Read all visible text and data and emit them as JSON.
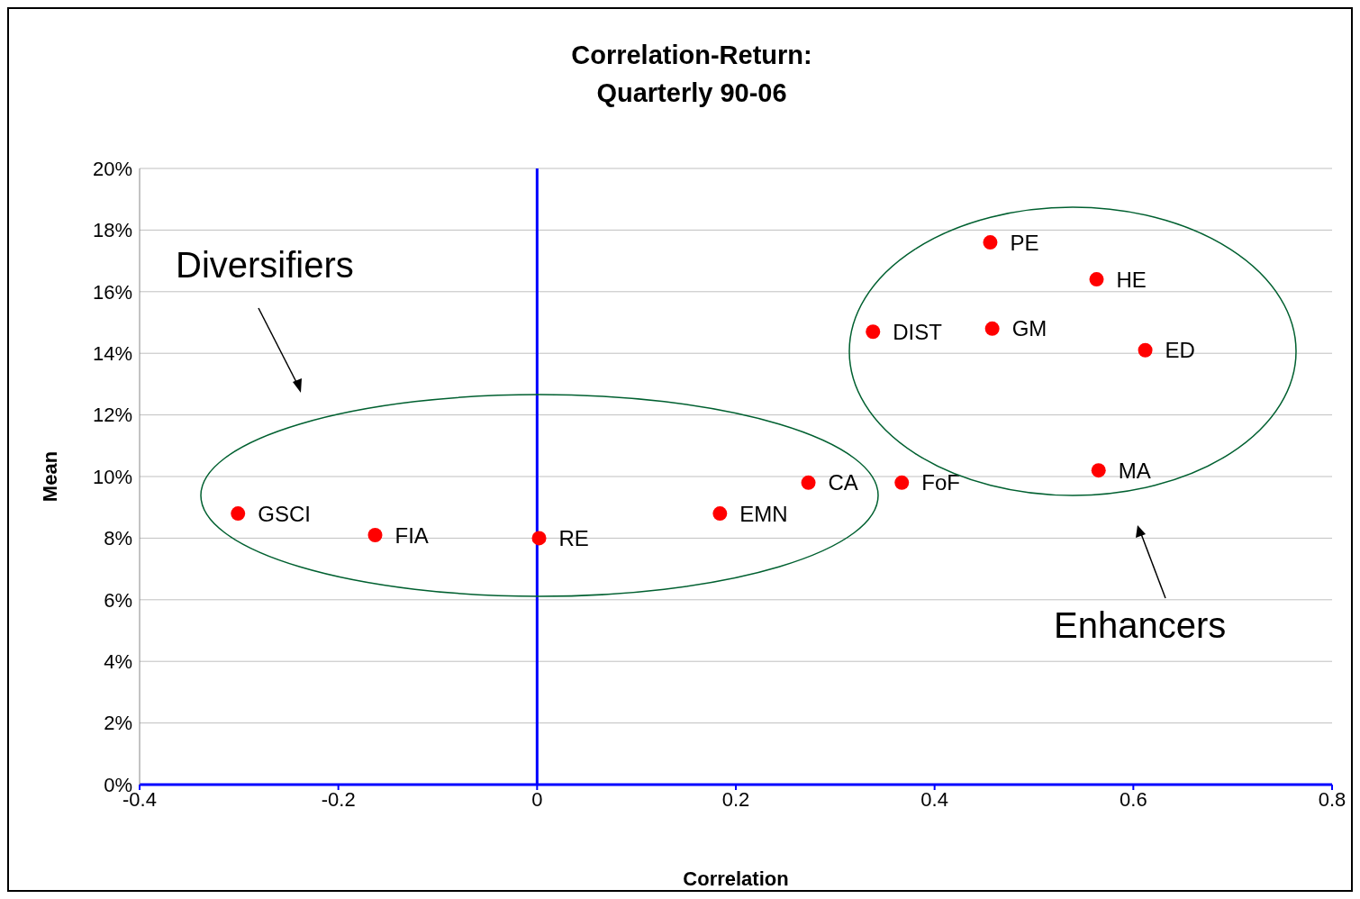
{
  "chart_data": {
    "type": "scatter",
    "title": "Correlation-Return:\nQuarterly 90-06",
    "xlabel": "Correlation",
    "ylabel": "Mean",
    "x": [
      -0.301,
      -0.163,
      0.002,
      0.184,
      0.273,
      0.367,
      0.338,
      0.456,
      0.458,
      0.563,
      0.612,
      0.565
    ],
    "series": [
      {
        "color": "#ff0000",
        "values": [
          8.8,
          8.1,
          8.0,
          8.8,
          9.8,
          9.8,
          14.7,
          17.6,
          14.8,
          16.4,
          14.1,
          10.2
        ]
      }
    ],
    "xlim": [
      -0.4,
      0.8
    ],
    "xticks": [
      -0.4,
      -0.2,
      0,
      0.2,
      0.4,
      0.6,
      0.8
    ],
    "ylim": [
      0,
      20
    ],
    "yticks": [
      {
        "value": 0,
        "label": "0%"
      },
      {
        "value": 2,
        "label": "2%"
      },
      {
        "value": 4,
        "label": "4%"
      },
      {
        "value": 6,
        "label": "6%"
      },
      {
        "value": 8,
        "label": "8%"
      },
      {
        "value": 10,
        "label": "10%"
      },
      {
        "value": 12,
        "label": "12%"
      },
      {
        "value": 14,
        "label": "14%"
      },
      {
        "value": 16,
        "label": "16%"
      },
      {
        "value": 18,
        "label": "18%"
      },
      {
        "value": 20,
        "label": "20%"
      }
    ],
    "grid": "y",
    "legend": false,
    "marker": "circle",
    "ref_lines": [
      {
        "axis": "x",
        "value": 0,
        "color": "#0000ff"
      }
    ],
    "annotations": [
      {
        "text": "GSCI",
        "x": -0.301,
        "y": 8.8
      },
      {
        "text": "FIA",
        "x": -0.163,
        "y": 8.1
      },
      {
        "text": "RE",
        "x": 0.002,
        "y": 8.0
      },
      {
        "text": "EMN",
        "x": 0.184,
        "y": 8.8
      },
      {
        "text": "CA",
        "x": 0.273,
        "y": 9.8
      },
      {
        "text": "FoF",
        "x": 0.367,
        "y": 9.8
      },
      {
        "text": "DIST",
        "x": 0.338,
        "y": 14.7
      },
      {
        "text": "PE",
        "x": 0.456,
        "y": 17.6
      },
      {
        "text": "GM",
        "x": 0.458,
        "y": 14.8
      },
      {
        "text": "HE",
        "x": 0.563,
        "y": 16.4
      },
      {
        "text": "ED",
        "x": 0.612,
        "y": 14.1
      },
      {
        "text": "MA",
        "x": 0.565,
        "y": 10.2
      },
      "Diversifiers",
      "Enhancers"
    ]
  }
}
